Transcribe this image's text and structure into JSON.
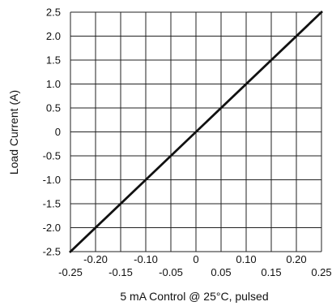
{
  "chart_data": {
    "type": "line",
    "title": "",
    "xlabel": "5 mA Control @ 25°C, pulsed",
    "ylabel": "Load Current (A)",
    "xlim": [
      -0.25,
      0.25
    ],
    "ylim": [
      -2.5,
      2.5
    ],
    "grid": true,
    "legend": "none",
    "colors": {
      "line": "#111111",
      "grid": "#222222",
      "text": "#111111",
      "background": "#ffffff"
    },
    "x_ticks_lower": [
      {
        "value": -0.25,
        "label": "-0.25"
      },
      {
        "value": -0.15,
        "label": "-0.15"
      },
      {
        "value": -0.05,
        "label": "-0.05"
      },
      {
        "value": 0.05,
        "label": "0.05"
      },
      {
        "value": 0.15,
        "label": "0.15"
      },
      {
        "value": 0.25,
        "label": "0.25"
      }
    ],
    "x_ticks_upper": [
      {
        "value": -0.2,
        "label": "-0.20"
      },
      {
        "value": -0.1,
        "label": "-0.10"
      },
      {
        "value": 0,
        "label": "0"
      },
      {
        "value": 0.1,
        "label": "0.10"
      },
      {
        "value": 0.2,
        "label": "0.20"
      }
    ],
    "y_ticks": [
      {
        "value": 2.5,
        "label": "2.5"
      },
      {
        "value": 2.0,
        "label": "2.0"
      },
      {
        "value": 1.5,
        "label": "1.5"
      },
      {
        "value": 1.0,
        "label": "1.0"
      },
      {
        "value": 0.5,
        "label": "0.5"
      },
      {
        "value": 0,
        "label": "0"
      },
      {
        "value": -0.5,
        "label": "-0.5"
      },
      {
        "value": -1.0,
        "label": "-1.0"
      },
      {
        "value": -1.5,
        "label": "-1.5"
      },
      {
        "value": -2.0,
        "label": "-2.0"
      },
      {
        "value": -2.5,
        "label": "-2.5"
      }
    ],
    "x_gridlines": [
      -0.25,
      -0.2,
      -0.15,
      -0.1,
      -0.05,
      0,
      0.05,
      0.1,
      0.15,
      0.2,
      0.25
    ],
    "y_gridlines": [
      -2.5,
      -2.0,
      -1.5,
      -1.0,
      -0.5,
      0,
      0.5,
      1.0,
      1.5,
      2.0,
      2.5
    ],
    "series": [
      {
        "x": [
          -0.25,
          0.25
        ],
        "y": [
          -2.5,
          2.5
        ]
      }
    ]
  }
}
